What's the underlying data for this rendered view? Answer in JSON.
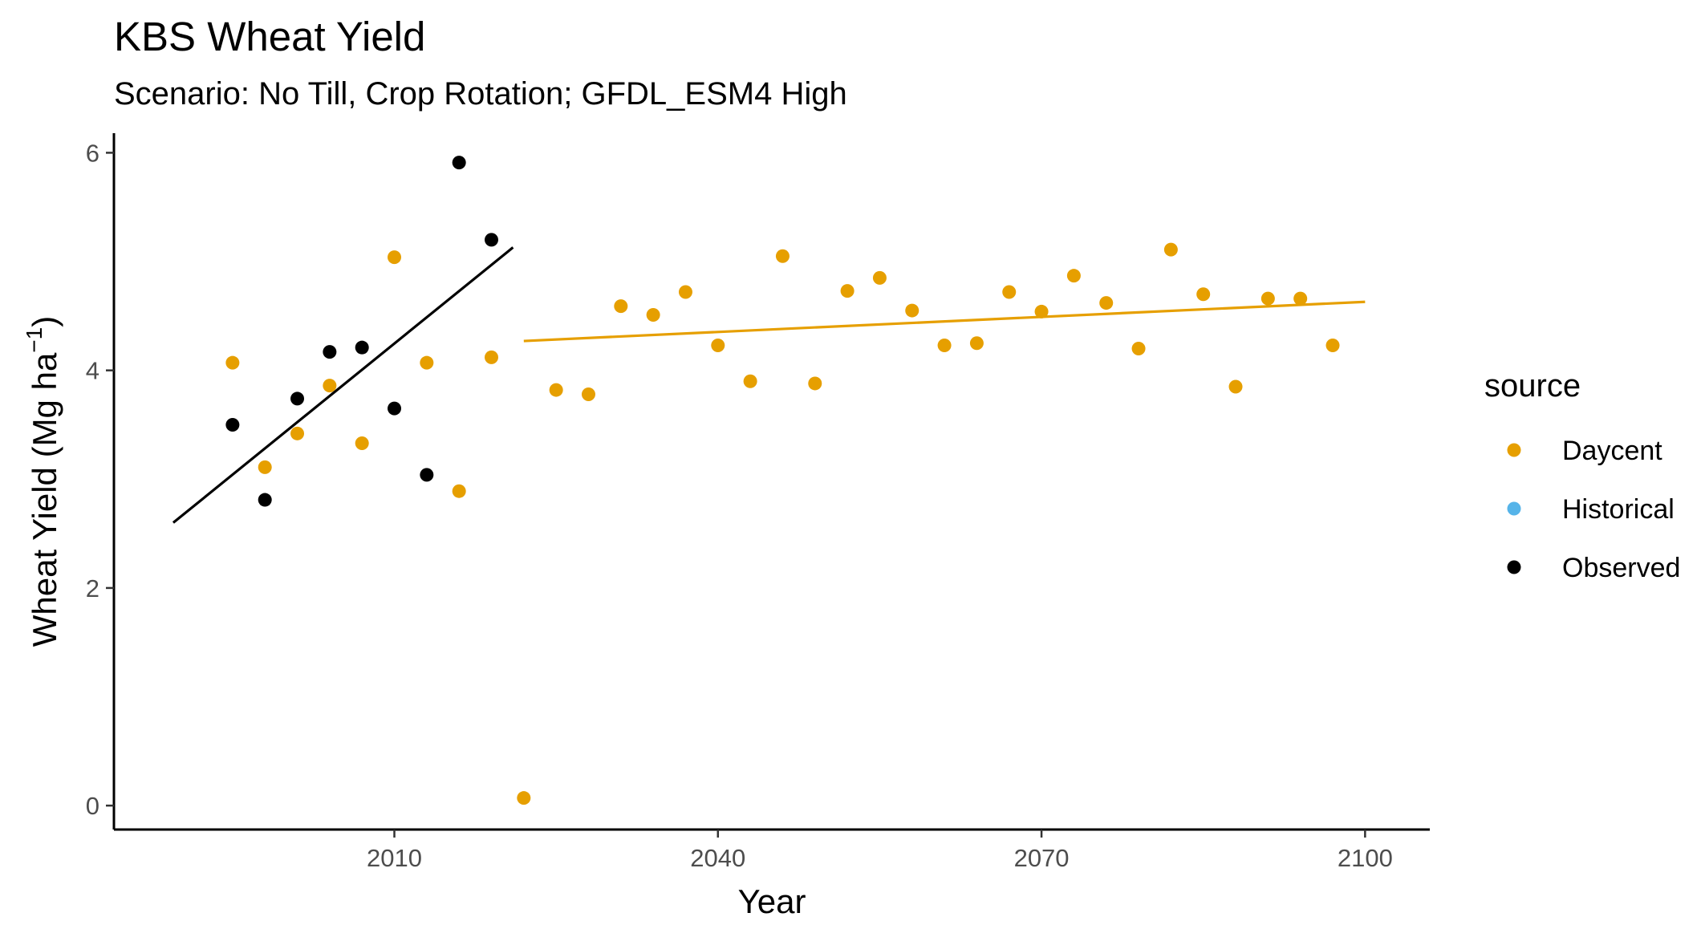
{
  "chart_data": {
    "type": "scatter",
    "title": "KBS Wheat Yield",
    "subtitle": "Scenario: No Till, Crop Rotation; GFDL_ESM4 High",
    "xlabel": "Year",
    "ylabel_main": "Wheat Yield (Mg ha",
    "ylabel_sup": "−1",
    "ylabel_close": ")",
    "xlim": [
      1984,
      2106
    ],
    "ylim": [
      -0.22,
      6.18
    ],
    "xticks": [
      2010,
      2040,
      2070,
      2100
    ],
    "yticks": [
      0,
      2,
      4,
      6
    ],
    "grid": false,
    "legend": {
      "title": "source",
      "position": "right",
      "items": [
        {
          "label": "Daycent",
          "color": "#E69F00"
        },
        {
          "label": "Historical",
          "color": "#56B4E9"
        },
        {
          "label": "Observed",
          "color": "#000000"
        }
      ]
    },
    "series": [
      {
        "name": "Daycent",
        "color": "#E69F00",
        "points": [
          [
            1995,
            4.07
          ],
          [
            1998,
            3.11
          ],
          [
            2001,
            3.42
          ],
          [
            2004,
            3.86
          ],
          [
            2007,
            3.33
          ],
          [
            2010,
            5.04
          ],
          [
            2013,
            4.07
          ],
          [
            2016,
            2.89
          ],
          [
            2019,
            4.12
          ],
          [
            2022,
            0.07
          ],
          [
            2025,
            3.82
          ],
          [
            2028,
            3.78
          ],
          [
            2031,
            4.59
          ],
          [
            2034,
            4.51
          ],
          [
            2037,
            4.72
          ],
          [
            2040,
            4.23
          ],
          [
            2043,
            3.9
          ],
          [
            2046,
            5.05
          ],
          [
            2049,
            3.88
          ],
          [
            2052,
            4.73
          ],
          [
            2055,
            4.85
          ],
          [
            2058,
            4.55
          ],
          [
            2061,
            4.23
          ],
          [
            2064,
            4.25
          ],
          [
            2067,
            4.72
          ],
          [
            2070,
            4.54
          ],
          [
            2073,
            4.87
          ],
          [
            2076,
            4.62
          ],
          [
            2079,
            4.2
          ],
          [
            2082,
            5.11
          ],
          [
            2085,
            4.7
          ],
          [
            2088,
            3.85
          ],
          [
            2091,
            4.66
          ],
          [
            2094,
            4.66
          ],
          [
            2097,
            4.23
          ]
        ]
      },
      {
        "name": "Historical",
        "color": "#56B4E9",
        "points": []
      },
      {
        "name": "Observed",
        "color": "#000000",
        "points": [
          [
            1995,
            3.5
          ],
          [
            1998,
            2.81
          ],
          [
            2001,
            3.74
          ],
          [
            2004,
            4.17
          ],
          [
            2007,
            4.21
          ],
          [
            2010,
            3.65
          ],
          [
            2013,
            3.04
          ],
          [
            2016,
            5.91
          ],
          [
            2019,
            5.2
          ]
        ]
      }
    ],
    "trendlines": [
      {
        "series": "Observed",
        "color": "#000000",
        "from": [
          1989.5,
          2.6
        ],
        "to": [
          2021,
          5.13
        ]
      },
      {
        "series": "Daycent",
        "color": "#E69F00",
        "from": [
          2022,
          4.27
        ],
        "to": [
          2100,
          4.63
        ]
      }
    ]
  }
}
